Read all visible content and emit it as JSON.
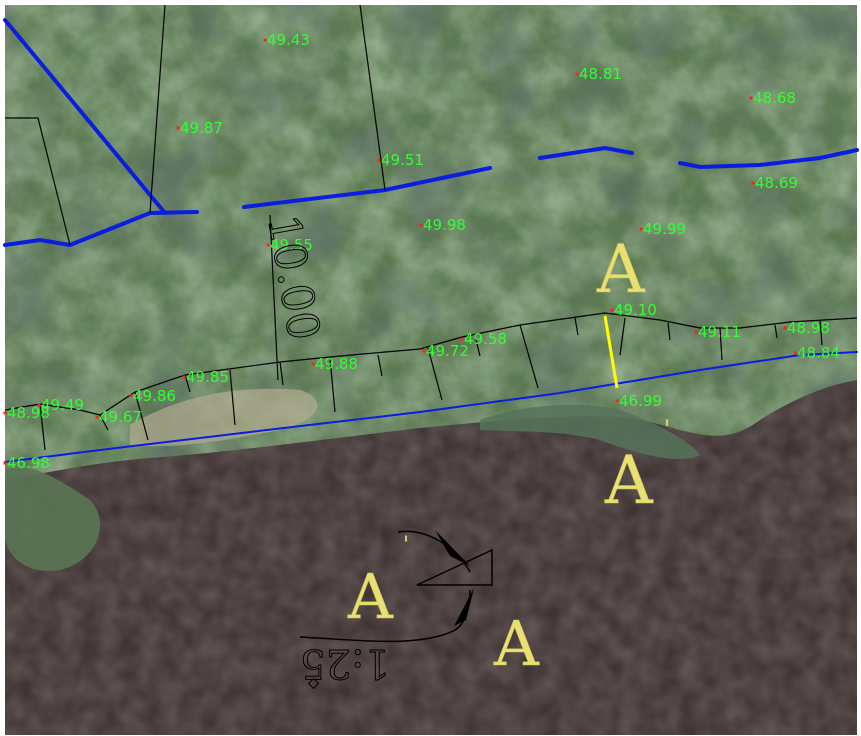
{
  "colors": {
    "elevation_text": "#32ff32",
    "elevation_point": "#ff2020",
    "boundary_line": "#0a1ee0",
    "section_line": "#ffff00",
    "section_label": "#e8e070",
    "linework": "#000000",
    "water": "#3f3433",
    "vegetation": "#6f8f62"
  },
  "elevations": [
    {
      "id": "e1",
      "value": "49.43"
    },
    {
      "id": "e2",
      "value": "48.81"
    },
    {
      "id": "e3",
      "value": "48.68"
    },
    {
      "id": "e4",
      "value": "49.87"
    },
    {
      "id": "e5",
      "value": "49.51"
    },
    {
      "id": "e6",
      "value": "48.69"
    },
    {
      "id": "e7",
      "value": "49.98"
    },
    {
      "id": "e8",
      "value": "49.99"
    },
    {
      "id": "e9",
      "value": "49.55"
    },
    {
      "id": "e10",
      "value": "49.10"
    },
    {
      "id": "e11",
      "value": "49.11"
    },
    {
      "id": "e12",
      "value": "48.98"
    },
    {
      "id": "e13",
      "value": "49.58"
    },
    {
      "id": "e14",
      "value": "48.84"
    },
    {
      "id": "e15",
      "value": "49.72"
    },
    {
      "id": "e16",
      "value": "49.88"
    },
    {
      "id": "e17",
      "value": "49.85"
    },
    {
      "id": "e18",
      "value": "46.99"
    },
    {
      "id": "e19",
      "value": "49.86"
    },
    {
      "id": "e20",
      "value": "49.49"
    },
    {
      "id": "e21",
      "value": "48.98"
    },
    {
      "id": "e22",
      "value": "49.67"
    },
    {
      "id": "e23",
      "value": "46.98"
    }
  ],
  "dimension_label": "10.00",
  "section_marks": {
    "upper": "A",
    "lower": "A",
    "lower_prime": "'",
    "symbol_left": "A",
    "symbol_left_prime": "'",
    "symbol_right": "A"
  },
  "scale_label": "1:25"
}
